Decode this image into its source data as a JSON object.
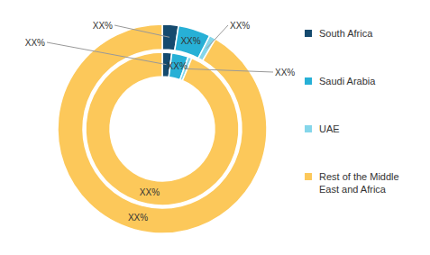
{
  "chart_data": [
    {
      "type": "pie",
      "categories": [
        "South Africa",
        "Saudi Arabia",
        "UAE",
        "Rest of the Middle East and Africa"
      ],
      "values": [
        2.5,
        5,
        1,
        91.5
      ],
      "value_labels": [
        "XX%",
        "XX%",
        "XX%",
        "XX%"
      ],
      "colors": [
        "#154a6e",
        "#27b0d6",
        "#85d6ea",
        "#fcc85a"
      ],
      "data_labels": true,
      "legend": "right"
    },
    {
      "type": "pie",
      "categories": [
        "South Africa",
        "Saudi Arabia",
        "UAE",
        "Rest of the Middle East and Africa"
      ],
      "values": [
        2,
        3.5,
        0.8,
        93.7
      ],
      "value_labels": [
        "XX%",
        "XX%",
        "XX%",
        "XX%"
      ],
      "colors": [
        "#154a6e",
        "#27b0d6",
        "#85d6ea",
        "#fcc85a"
      ],
      "data_labels": true
    }
  ]
}
